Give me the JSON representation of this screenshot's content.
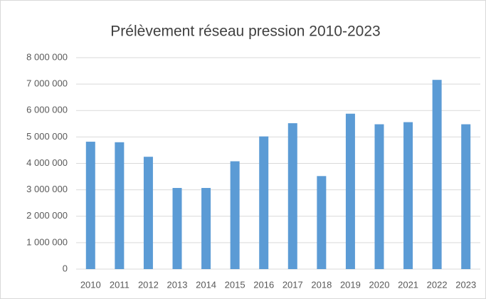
{
  "chart_data": {
    "type": "bar",
    "title": "Prélèvement réseau pression 2010-2023",
    "categories": [
      "2010",
      "2011",
      "2012",
      "2013",
      "2014",
      "2015",
      "2016",
      "2017",
      "2018",
      "2019",
      "2020",
      "2021",
      "2022",
      "2023"
    ],
    "values": [
      4820000,
      4800000,
      4250000,
      3070000,
      3070000,
      4080000,
      5020000,
      5520000,
      3520000,
      5880000,
      5480000,
      5560000,
      7160000,
      5480000
    ],
    "color": "#5b9bd5",
    "ylim": [
      0,
      8000000
    ],
    "yticks": [
      0,
      {
        "value": 1000000,
        "label": "1 000 000"
      },
      {
        "value": 2000000,
        "label": "2 000 000"
      },
      {
        "value": 3000000,
        "label": "3 000 000"
      },
      {
        "value": 4000000,
        "label": "4 000 000"
      },
      {
        "value": 5000000,
        "label": "5 000 000"
      },
      {
        "value": 6000000,
        "label": "6 000 000"
      },
      {
        "value": 7000000,
        "label": "7 000 000"
      },
      {
        "value": 8000000,
        "label": "8 000 000"
      }
    ],
    "grid": true
  }
}
